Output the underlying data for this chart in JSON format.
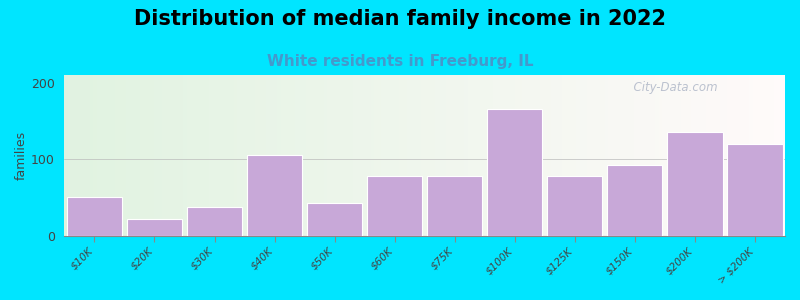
{
  "title": "Distribution of median family income in 2022",
  "subtitle": "White residents in Freeburg, IL",
  "categories": [
    "$10K",
    "$20K",
    "$30K",
    "$40K",
    "$50K",
    "$60K",
    "$75K",
    "$100K",
    "$125K",
    "$150K",
    "$200K",
    "> $200K"
  ],
  "values": [
    50,
    22,
    37,
    105,
    42,
    78,
    78,
    165,
    78,
    92,
    135,
    120
  ],
  "bar_color": "#c8a8d8",
  "ylabel": "families",
  "ylim": [
    0,
    210
  ],
  "yticks": [
    0,
    100,
    200
  ],
  "background_color": "#00e5ff",
  "title_fontsize": 15,
  "subtitle_fontsize": 11,
  "subtitle_color": "#4499cc",
  "watermark": "  City-Data.com"
}
